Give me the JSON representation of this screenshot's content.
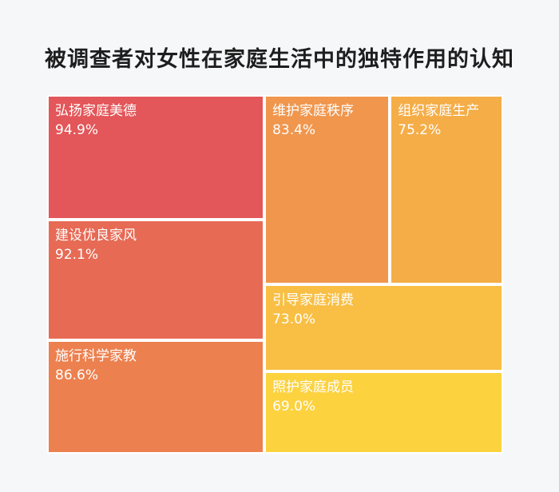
{
  "title": "被调查者对女性在家庭生活中的独特作用的认知",
  "chart_data": {
    "type": "treemap",
    "title": "被调查者对女性在家庭生活中的独特作用的认知",
    "items": [
      {
        "label": "弘扬家庭美德",
        "value": 94.9,
        "display": "94.9%",
        "color": "#e35659"
      },
      {
        "label": "建设优良家风",
        "value": 92.1,
        "display": "92.1%",
        "color": "#e76a55"
      },
      {
        "label": "施行科学家教",
        "value": 86.6,
        "display": "86.6%",
        "color": "#ec804f"
      },
      {
        "label": "维护家庭秩序",
        "value": 83.4,
        "display": "83.4%",
        "color": "#f0964d"
      },
      {
        "label": "组织家庭生产",
        "value": 75.2,
        "display": "75.2%",
        "color": "#f5ad47"
      },
      {
        "label": "引导家庭消费",
        "value": 73.0,
        "display": "73.0%",
        "color": "#f8bf44"
      },
      {
        "label": "照护家庭成员",
        "value": 69.0,
        "display": "69.0%",
        "color": "#fcd23f"
      }
    ]
  }
}
